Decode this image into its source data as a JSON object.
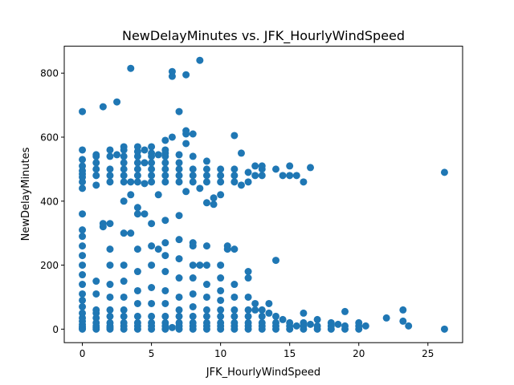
{
  "chart_data": {
    "type": "scatter",
    "title": "NewDelayMinutes vs. JFK_HourlyWindSpeed",
    "xlabel": "JFK_HourlyWindSpeed",
    "ylabel": "NewDelayMinutes",
    "xlim": [
      -1.31,
      27.51
    ],
    "ylim": [
      -42.2,
      884.2
    ],
    "xticks": [
      0,
      5,
      10,
      15,
      20,
      25
    ],
    "yticks": [
      0,
      200,
      400,
      600,
      800
    ],
    "grid": false,
    "legend": "none",
    "color": "#1f77b4",
    "series": [
      {
        "x": [
          0,
          0,
          0,
          0,
          0,
          0,
          0,
          0,
          0,
          0,
          0,
          0,
          0,
          0,
          0,
          0,
          0,
          0,
          0,
          0,
          0,
          0,
          0,
          0,
          0,
          0,
          0,
          1,
          1,
          1,
          1,
          1,
          1,
          1,
          1,
          1,
          1,
          1,
          1,
          1,
          1,
          1,
          1.5,
          1.5,
          1.5,
          2,
          2,
          2,
          2,
          2,
          2,
          2,
          2,
          2,
          2,
          2,
          2,
          2,
          2,
          2,
          2,
          2.5,
          2.5,
          3,
          3,
          3,
          3,
          3,
          3,
          3,
          3,
          3,
          3,
          3,
          3,
          3,
          3,
          3,
          3,
          3,
          3.5,
          3.5,
          3.5,
          3.5,
          4,
          4,
          4,
          4,
          4,
          4,
          4,
          4,
          4,
          4,
          4,
          4,
          4,
          4,
          4,
          4,
          4,
          4.5,
          4.5,
          4.5,
          4.5,
          5,
          5,
          5,
          5,
          5,
          5,
          5,
          5,
          5,
          5,
          5,
          5,
          5,
          5,
          5,
          5,
          5.5,
          5.5,
          5.5,
          6,
          6,
          6,
          6,
          6,
          6,
          6,
          6,
          6,
          6,
          6,
          6,
          6,
          6,
          6,
          6,
          6,
          6,
          6.5,
          6.5,
          6.5,
          6.5,
          7,
          7,
          7,
          7,
          7,
          7,
          7,
          7,
          7,
          7,
          7,
          7,
          7,
          7,
          7,
          7,
          7.5,
          7.5,
          7.5,
          7.5,
          7.5,
          8,
          8,
          8,
          8,
          8,
          8,
          8,
          8,
          8,
          8,
          8,
          8,
          8,
          8,
          8,
          8.5,
          8.5,
          8.5,
          9,
          9,
          9,
          9,
          9,
          9,
          9,
          9,
          9,
          9,
          9,
          9,
          9,
          9,
          9.5,
          9.5,
          10,
          10,
          10,
          10,
          10,
          10,
          10,
          10,
          10,
          10,
          10,
          10,
          10,
          10.5,
          10.5,
          11,
          11,
          11,
          11,
          11,
          11,
          11,
          11,
          11,
          11,
          11,
          11,
          11.5,
          11.5,
          12,
          12,
          12,
          12,
          12,
          12,
          12,
          12,
          12,
          12,
          12.5,
          12.5,
          12.5,
          12.5,
          13,
          13,
          13,
          13,
          13,
          13,
          13,
          13,
          13.5,
          13.5,
          14,
          14,
          14,
          14,
          14,
          14,
          14.5,
          14.5,
          15,
          15,
          15,
          15,
          15,
          15.5,
          15.5,
          16,
          16,
          16,
          16,
          16,
          16.5,
          16.5,
          17,
          17,
          17,
          18,
          18,
          18,
          18.5,
          19,
          19,
          19,
          20,
          20,
          20,
          20.5,
          22,
          23.2,
          23.2,
          23.6,
          26.2,
          26.2
        ],
        "y": [
          0,
          3,
          8,
          15,
          25,
          35,
          50,
          70,
          90,
          110,
          140,
          170,
          200,
          230,
          260,
          290,
          310,
          360,
          440,
          460,
          475,
          485,
          495,
          510,
          530,
          560,
          680,
          0,
          5,
          10,
          20,
          35,
          50,
          60,
          110,
          150,
          450,
          480,
          500,
          520,
          540,
          545,
          320,
          330,
          695,
          0,
          5,
          10,
          20,
          40,
          60,
          100,
          140,
          200,
          250,
          330,
          460,
          480,
          500,
          540,
          560,
          545,
          710,
          0,
          10,
          20,
          40,
          60,
          100,
          150,
          200,
          300,
          400,
          460,
          480,
          500,
          520,
          540,
          560,
          570,
          300,
          420,
          460,
          815,
          0,
          10,
          20,
          40,
          80,
          120,
          180,
          250,
          360,
          380,
          460,
          480,
          500,
          520,
          540,
          555,
          570,
          360,
          455,
          520,
          560,
          0,
          10,
          20,
          40,
          80,
          130,
          200,
          260,
          330,
          460,
          480,
          500,
          520,
          540,
          550,
          570,
          250,
          420,
          545,
          0,
          10,
          20,
          40,
          80,
          120,
          180,
          230,
          270,
          340,
          460,
          480,
          500,
          520,
          540,
          550,
          560,
          590,
          5,
          600,
          790,
          805,
          0,
          10,
          20,
          40,
          60,
          100,
          160,
          220,
          280,
          355,
          460,
          480,
          500,
          520,
          545,
          680,
          430,
          580,
          610,
          620,
          795,
          0,
          10,
          20,
          40,
          70,
          110,
          160,
          200,
          260,
          270,
          460,
          480,
          500,
          540,
          610,
          200,
          440,
          840,
          0,
          10,
          20,
          40,
          60,
          100,
          140,
          200,
          260,
          395,
          460,
          480,
          500,
          525,
          390,
          410,
          0,
          10,
          20,
          40,
          60,
          90,
          120,
          160,
          200,
          420,
          460,
          480,
          500,
          250,
          260,
          0,
          10,
          20,
          40,
          60,
          100,
          140,
          250,
          460,
          480,
          500,
          605,
          450,
          550,
          0,
          10,
          20,
          40,
          60,
          100,
          160,
          180,
          460,
          490,
          60,
          80,
          480,
          510,
          0,
          10,
          20,
          40,
          60,
          480,
          500,
          510,
          50,
          80,
          0,
          10,
          20,
          40,
          215,
          500,
          30,
          480,
          0,
          10,
          20,
          480,
          510,
          10,
          480,
          0,
          10,
          20,
          50,
          460,
          15,
          505,
          0,
          10,
          30,
          0,
          10,
          20,
          15,
          0,
          10,
          55,
          0,
          10,
          20,
          10,
          35,
          25,
          60,
          10,
          0,
          490
        ]
      }
    ]
  }
}
